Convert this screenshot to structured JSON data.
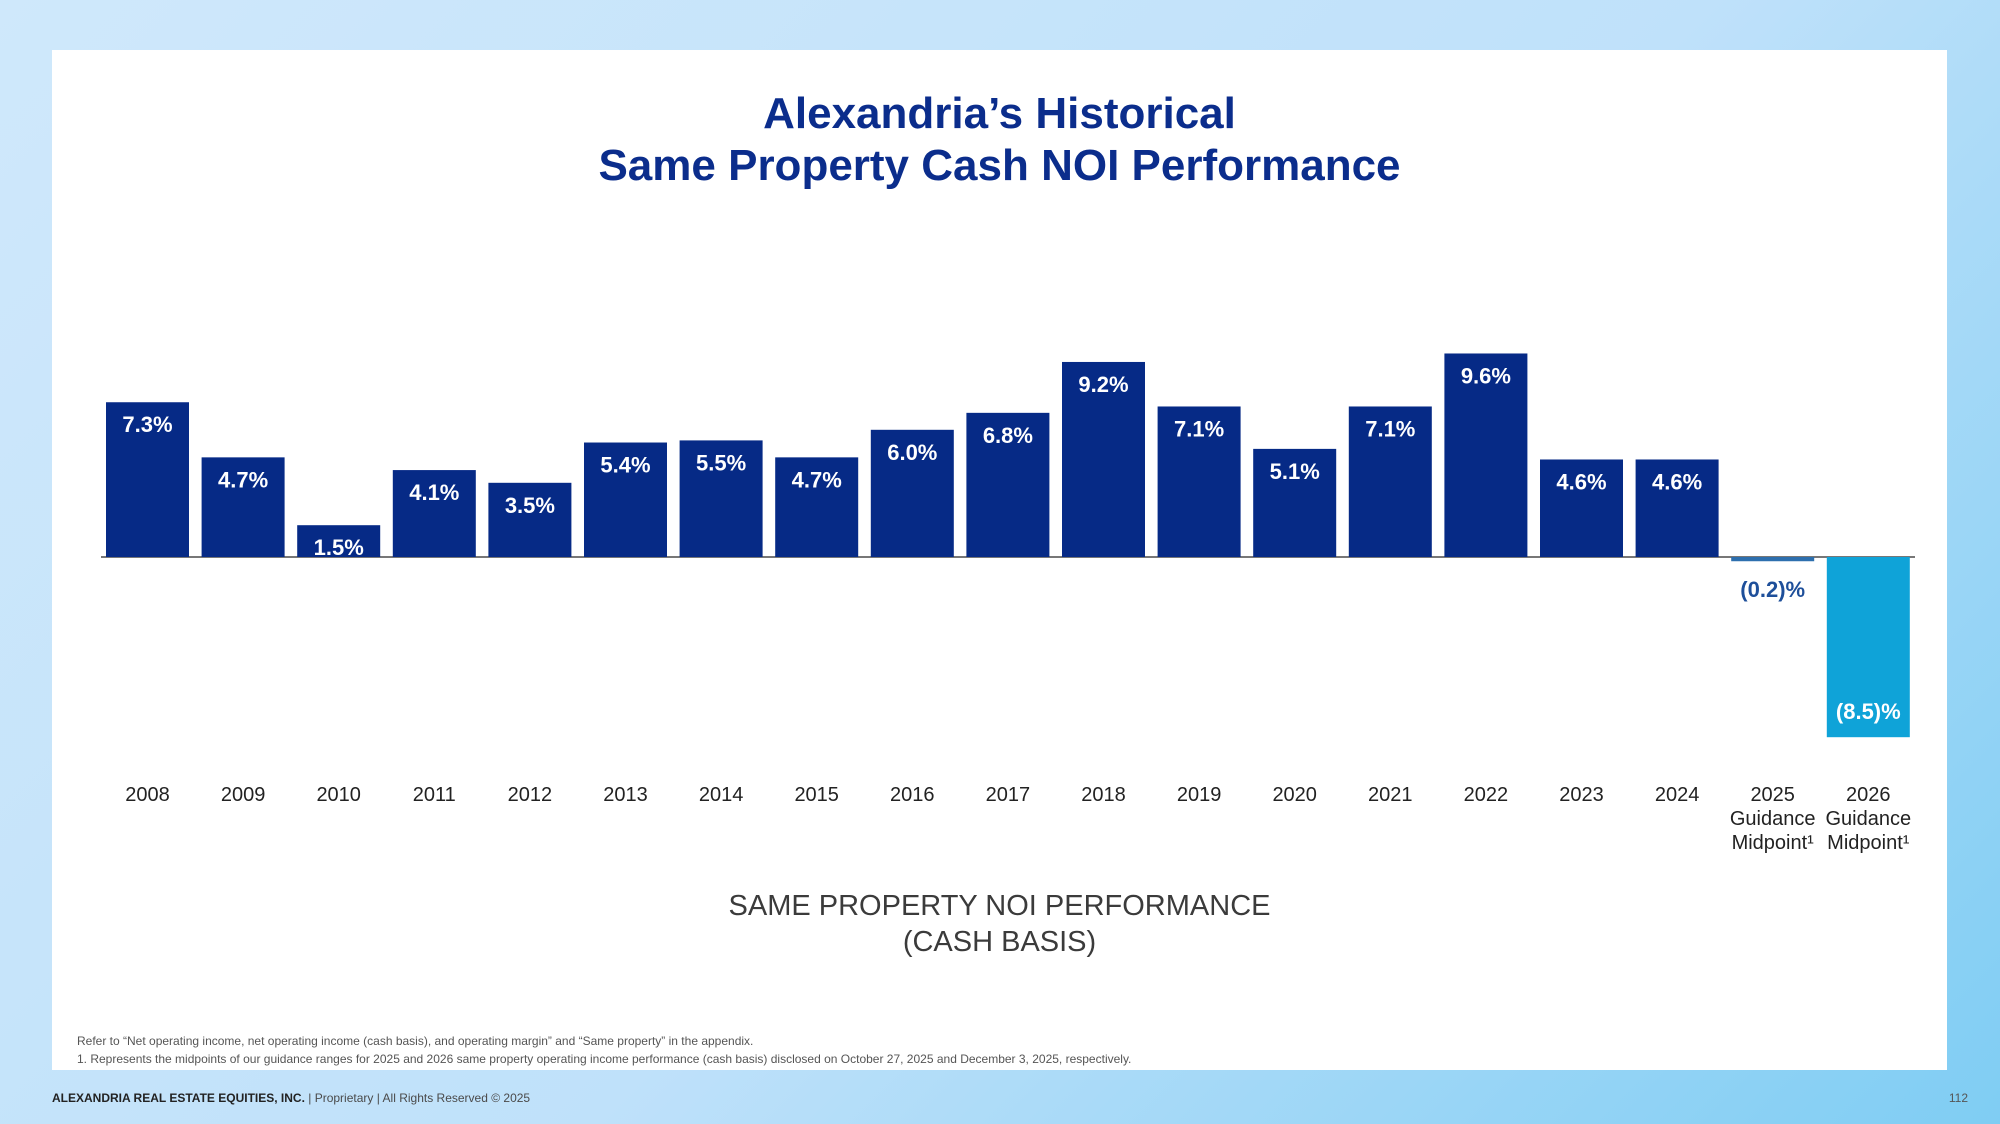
{
  "title_line1": "Alexandria’s Historical",
  "title_line2": "Same Property Cash NOI Performance",
  "subtitle_line1": "SAME PROPERTY NOI PERFORMANCE",
  "subtitle_line2": "(CASH BASIS)",
  "footnote_refer": "Refer to “Net operating income, net operating income (cash basis), and operating margin” and “Same property” in the appendix.",
  "footnote_1": "1.   Represents the midpoints of our guidance ranges for 2025 and 2026 same property operating income performance (cash basis) disclosed on October 27, 2025 and December 3, 2025, respectively.",
  "footer_company": "ALEXANDRIA REAL ESTATE EQUITIES, INC.",
  "footer_rest": " | Proprietary | All Rights Reserved © 2025",
  "page_number": "112",
  "colors": {
    "title": "#0b2d8c",
    "bar_historical": "#062a86",
    "bar_guidance_2025": "#2d6fae",
    "bar_guidance_2026": "#0fa3d8"
  },
  "chart_data": {
    "type": "bar",
    "categories": [
      "2008",
      "2009",
      "2010",
      "2011",
      "2012",
      "2013",
      "2014",
      "2015",
      "2016",
      "2017",
      "2018",
      "2019",
      "2020",
      "2021",
      "2022",
      "2023",
      "2024",
      "2025 Guidance Midpoint¹",
      "2026 Guidance Midpoint¹"
    ],
    "category_labels": [
      [
        "2008"
      ],
      [
        "2009"
      ],
      [
        "2010"
      ],
      [
        "2011"
      ],
      [
        "2012"
      ],
      [
        "2013"
      ],
      [
        "2014"
      ],
      [
        "2015"
      ],
      [
        "2016"
      ],
      [
        "2017"
      ],
      [
        "2018"
      ],
      [
        "2019"
      ],
      [
        "2020"
      ],
      [
        "2021"
      ],
      [
        "2022"
      ],
      [
        "2023"
      ],
      [
        "2024"
      ],
      [
        "2025",
        "Guidance",
        "Midpoint¹"
      ],
      [
        "2026",
        "Guidance",
        "Midpoint¹"
      ]
    ],
    "values": [
      7.3,
      4.7,
      1.5,
      4.1,
      3.5,
      5.4,
      5.5,
      4.7,
      6.0,
      6.8,
      9.2,
      7.1,
      5.1,
      7.1,
      9.6,
      4.6,
      4.6,
      -0.2,
      -8.5
    ],
    "data_labels": [
      "7.3%",
      "4.7%",
      "1.5%",
      "4.1%",
      "3.5%",
      "5.4%",
      "5.5%",
      "4.7%",
      "6.0%",
      "6.8%",
      "9.2%",
      "7.1%",
      "5.1%",
      "7.1%",
      "9.6%",
      "4.6%",
      "4.6%",
      "(0.2)%",
      "(8.5)%"
    ],
    "unit": "%",
    "ylim": [
      -8.5,
      9.6
    ],
    "grid": false,
    "legend": "none"
  }
}
